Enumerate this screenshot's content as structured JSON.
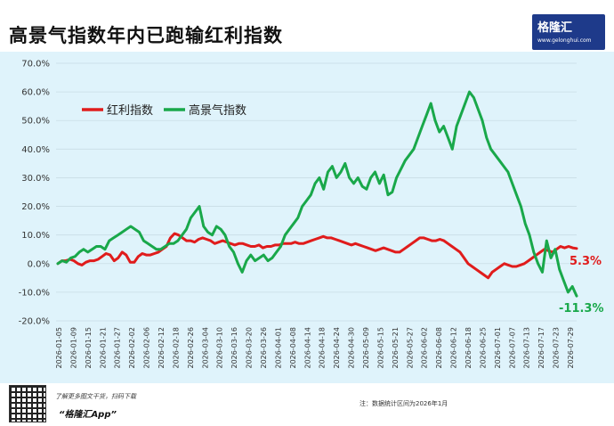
{
  "header": {
    "title": "高景气指数年内已跑输红利指数",
    "logo_text": "格隆汇",
    "logo_url": "www.gelonghui.com"
  },
  "footer": {
    "note": "了解更多图文干货，扫码下载",
    "app": "“格隆汇App”",
    "source": "注：数据统计区间为2026年1月"
  },
  "colors": {
    "red": "#e01c1c",
    "green": "#19a84a",
    "bg": "#dff3fb"
  },
  "chart_data": {
    "type": "line",
    "title": "高景气指数年内已跑输红利指数",
    "ylim": [
      -20,
      70
    ],
    "yticks": [
      "70.0%",
      "60.0%",
      "50.0%",
      "40.0%",
      "30.0%",
      "20.0%",
      "10.0%",
      "0.0%",
      "-10.0%",
      "-20.0%"
    ],
    "ytick_values": [
      70,
      60,
      50,
      40,
      30,
      20,
      10,
      0,
      -10,
      -20
    ],
    "x_tick_labels": [
      "2026-01-05",
      "2026-01-09",
      "2026-01-15",
      "2026-01-21",
      "2026-01-27",
      "2026-02-02",
      "2026-02-06",
      "2026-02-12",
      "2026-02-18",
      "2026-02-26",
      "2026-03-04",
      "2026-03-10",
      "2026-03-16",
      "2026-03-20",
      "2026-03-26",
      "2026-04-01",
      "2026-04-08",
      "2026-04-14",
      "2026-04-18",
      "2026-04-24",
      "2026-04-30",
      "2026-05-09",
      "2026-05-15",
      "2026-05-21",
      "2026-05-27",
      "2026-06-02",
      "2026-06-08",
      "2026-06-12",
      "2026-06-18",
      "2026-06-25",
      "2026-07-01",
      "2026-07-07",
      "2026-07-13",
      "2026-07-17",
      "2026-07-23",
      "2026-07-29"
    ],
    "legend_position": "top-left",
    "series": [
      {
        "name": "红利指数",
        "color": "#e01c1c",
        "end_label": "5.3%",
        "values": [
          0,
          1,
          1,
          1.5,
          1,
          0,
          -0.5,
          0.5,
          1,
          1,
          1.5,
          2.5,
          3.5,
          3,
          1,
          2,
          4,
          3,
          0.5,
          0.5,
          2.5,
          3.5,
          3,
          3,
          3.5,
          4,
          5,
          6,
          9,
          10.5,
          10,
          9,
          8,
          8,
          7.5,
          8.5,
          9,
          8.5,
          8,
          7,
          7.5,
          8,
          7.5,
          7,
          6.5,
          7,
          7,
          6.5,
          6,
          6,
          6.5,
          5.5,
          6,
          6,
          6.5,
          6.5,
          7,
          7,
          7,
          7.5,
          7,
          7,
          7.5,
          8,
          8.5,
          9,
          9.5,
          9,
          9,
          8.5,
          8,
          7.5,
          7,
          6.5,
          7,
          6.5,
          6,
          5.5,
          5,
          4.5,
          5,
          5.5,
          5,
          4.5,
          4,
          4,
          5,
          6,
          7,
          8,
          9,
          9,
          8.5,
          8,
          8,
          8.5,
          8,
          7,
          6,
          5,
          4,
          2,
          0,
          -1,
          -2,
          -3,
          -4,
          -5,
          -3,
          -2,
          -1,
          0,
          -0.5,
          -1,
          -1,
          -0.5,
          0,
          1,
          2,
          3,
          4,
          5,
          4.5,
          4,
          5,
          6,
          5.5,
          6,
          5.5,
          5.3
        ]
      },
      {
        "name": "高景气指数",
        "color": "#19a84a",
        "end_label": "-11.3%",
        "values": [
          0,
          1,
          0.5,
          2,
          2.5,
          4,
          5,
          4,
          5,
          6,
          6,
          5,
          8,
          9,
          10,
          11,
          12,
          13,
          12,
          11,
          8,
          7,
          6,
          5,
          5,
          6,
          7,
          7,
          8,
          10,
          12,
          16,
          18,
          20,
          13,
          11,
          10,
          13,
          12,
          10,
          6,
          4,
          0,
          -3,
          1,
          3,
          1,
          2,
          3,
          1,
          2,
          4,
          6,
          10,
          12,
          14,
          16,
          20,
          22,
          24,
          28,
          30,
          26,
          32,
          34,
          30,
          32,
          35,
          30,
          28,
          30,
          27,
          26,
          30,
          32,
          28,
          31,
          24,
          25,
          30,
          33,
          36,
          38,
          40,
          44,
          48,
          52,
          56,
          50,
          46,
          48,
          44,
          40,
          48,
          52,
          56,
          60,
          58,
          54,
          50,
          44,
          40,
          38,
          36,
          34,
          32,
          28,
          24,
          20,
          14,
          10,
          4,
          0,
          -3,
          8,
          2,
          5,
          -2,
          -6,
          -10,
          -8,
          -11.3
        ]
      }
    ]
  }
}
